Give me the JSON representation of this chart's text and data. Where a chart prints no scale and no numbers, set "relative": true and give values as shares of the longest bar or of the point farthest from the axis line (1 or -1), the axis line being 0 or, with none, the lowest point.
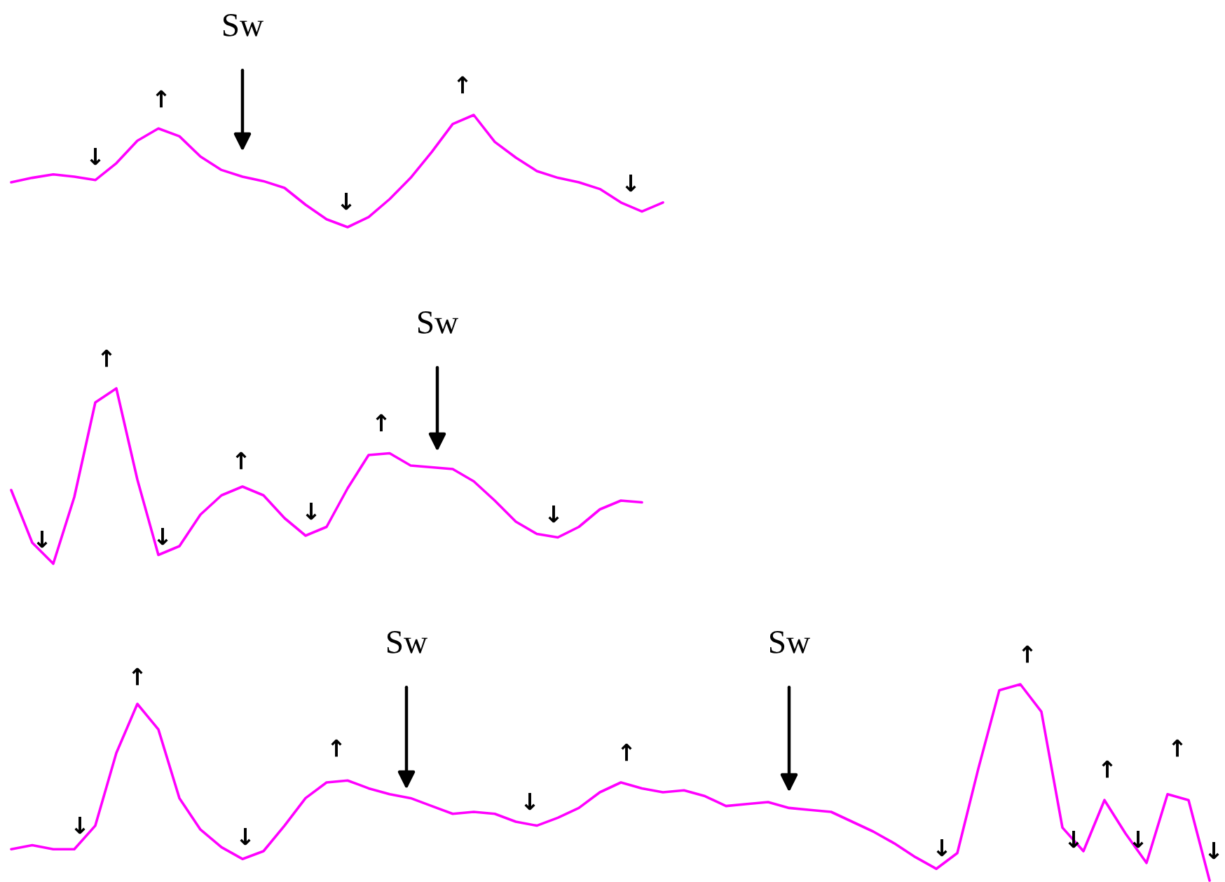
{
  "chart_data": [
    {
      "type": "line",
      "relative": true,
      "color": "#ff00ff",
      "tick_labels": false,
      "categories": [
        null,
        null,
        null,
        null,
        null,
        null,
        null,
        null,
        null,
        null,
        null,
        null,
        null,
        null,
        null,
        null,
        null,
        null,
        null,
        null,
        null,
        null,
        null,
        null,
        null,
        null,
        null,
        null,
        null,
        null,
        null,
        null
      ],
      "values": [
        0.4,
        0.44,
        0.47,
        0.45,
        0.42,
        0.57,
        0.77,
        0.88,
        0.81,
        0.63,
        0.51,
        0.45,
        0.41,
        0.35,
        0.2,
        0.07,
        0,
        0.09,
        0.25,
        0.44,
        0.67,
        0.92,
        1,
        0.76,
        0.62,
        0.5,
        0.44,
        0.4,
        0.34,
        0.22,
        0.14,
        0.22
      ],
      "annotations": [
        "↓",
        "↑",
        "Sw",
        "↓",
        "↑",
        "↓"
      ]
    },
    {
      "type": "line",
      "relative": true,
      "color": "#ff00ff",
      "tick_labels": false,
      "categories": [
        null,
        null,
        null,
        null,
        null,
        null,
        null,
        null,
        null,
        null,
        null,
        null,
        null,
        null,
        null,
        null,
        null,
        null,
        null,
        null,
        null,
        null,
        null,
        null,
        null,
        null,
        null,
        null,
        null,
        null,
        null
      ],
      "values": [
        0.42,
        0.12,
        0,
        0.38,
        0.92,
        1,
        0.48,
        0.05,
        0.1,
        0.28,
        0.39,
        0.44,
        0.39,
        0.26,
        0.16,
        0.21,
        0.43,
        0.62,
        0.63,
        0.56,
        0.55,
        0.54,
        0.47,
        0.36,
        0.24,
        0.17,
        0.15,
        0.21,
        0.31,
        0.36,
        0.35
      ],
      "annotations": [
        "↓",
        "↑",
        "↓",
        "↑",
        "↓",
        "↑",
        "Sw",
        "↓"
      ]
    },
    {
      "type": "line",
      "relative": true,
      "color": "#ff00ff",
      "tick_labels": false,
      "categories": [
        null,
        null,
        null,
        null,
        null,
        null,
        null,
        null,
        null,
        null,
        null,
        null,
        null,
        null,
        null,
        null,
        null,
        null,
        null,
        null,
        null,
        null,
        null,
        null,
        null,
        null,
        null,
        null,
        null,
        null,
        null,
        null,
        null,
        null,
        null,
        null,
        null,
        null,
        null,
        null,
        null,
        null,
        null,
        null,
        null,
        null,
        null,
        null,
        null,
        null,
        null,
        null,
        null,
        null,
        null,
        null,
        null,
        null
      ],
      "values": [
        0.16,
        0.18,
        0.16,
        0.16,
        0.28,
        0.65,
        0.9,
        0.77,
        0.42,
        0.26,
        0.17,
        0.11,
        0.15,
        0.28,
        0.42,
        0.5,
        0.51,
        0.47,
        0.44,
        0.42,
        0.38,
        0.34,
        0.35,
        0.34,
        0.3,
        0.28,
        0.32,
        0.37,
        0.45,
        0.5,
        0.47,
        0.45,
        0.46,
        0.43,
        0.38,
        0.39,
        0.4,
        0.37,
        0.36,
        0.35,
        0.3,
        0.25,
        0.19,
        0.12,
        0.06,
        0.14,
        0.57,
        0.97,
        1,
        0.86,
        0.27,
        0.15,
        0.41,
        0.24,
        0.09,
        0.44,
        0.41,
        0
      ],
      "annotations": [
        "↓",
        "↑",
        "↓",
        "↑",
        "Sw",
        "↓",
        "↑",
        "Sw",
        "↓",
        "↑",
        "↓",
        "↑",
        "↓",
        "↑",
        "↓"
      ]
    }
  ]
}
